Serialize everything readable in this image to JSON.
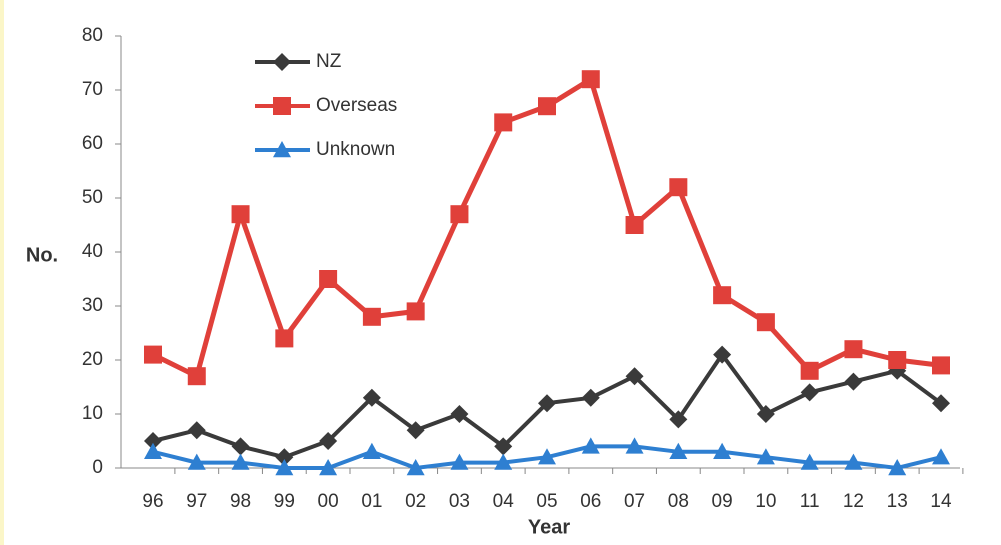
{
  "chart_data": {
    "type": "line",
    "categories": [
      "96",
      "97",
      "98",
      "99",
      "00",
      "01",
      "02",
      "03",
      "04",
      "05",
      "06",
      "07",
      "08",
      "09",
      "10",
      "11",
      "12",
      "13",
      "14"
    ],
    "series": [
      {
        "name": "NZ",
        "color": "#3a3a3a",
        "marker": "diamond",
        "values": [
          5,
          7,
          4,
          2,
          5,
          13,
          7,
          10,
          4,
          12,
          13,
          17,
          9,
          21,
          10,
          14,
          16,
          18,
          12
        ]
      },
      {
        "name": "Overseas",
        "color": "#e0403a",
        "marker": "square",
        "values": [
          21,
          17,
          47,
          24,
          35,
          28,
          29,
          47,
          64,
          67,
          72,
          45,
          52,
          32,
          27,
          18,
          22,
          20,
          19
        ]
      },
      {
        "name": "Unknown",
        "color": "#2e7fd1",
        "marker": "triangle",
        "values": [
          3,
          1,
          1,
          0,
          0,
          3,
          0,
          1,
          1,
          2,
          4,
          4,
          3,
          3,
          2,
          1,
          1,
          0,
          2
        ]
      }
    ],
    "x_label": "Year",
    "y_label": "No.",
    "ylim": [
      0,
      80
    ],
    "yticks": [
      0,
      10,
      20,
      30,
      40,
      50,
      60,
      70,
      80
    ]
  }
}
